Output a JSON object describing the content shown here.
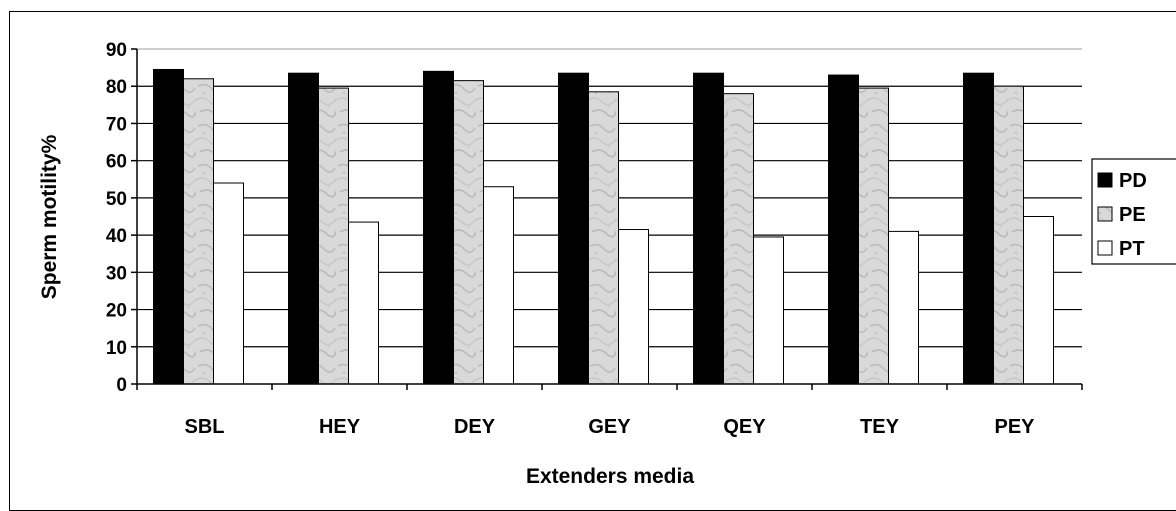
{
  "chart_data": {
    "type": "bar",
    "title": "",
    "xlabel": "Extenders media",
    "ylabel": "Sperm motility%",
    "ylim": [
      0,
      90
    ],
    "yticks": [
      0,
      10,
      20,
      30,
      40,
      50,
      60,
      70,
      80,
      90
    ],
    "categories": [
      "SBL",
      "HEY",
      "DEY",
      "GEY",
      "QEY",
      "TEY",
      "PEY"
    ],
    "series": [
      {
        "name": "PD",
        "color": "#000000",
        "fill": "solid",
        "values": [
          84.5,
          83.5,
          84,
          83.5,
          83.5,
          83,
          83.5
        ]
      },
      {
        "name": "PE",
        "color": "#d8d8d8",
        "fill": "marble",
        "values": [
          82,
          79.5,
          81.5,
          78.5,
          78,
          79.5,
          80
        ]
      },
      {
        "name": "PT",
        "color": "#ffffff",
        "fill": "none",
        "values": [
          54,
          43.5,
          53,
          41.5,
          39.5,
          41,
          45
        ]
      }
    ],
    "grid": true,
    "legend": "right"
  }
}
